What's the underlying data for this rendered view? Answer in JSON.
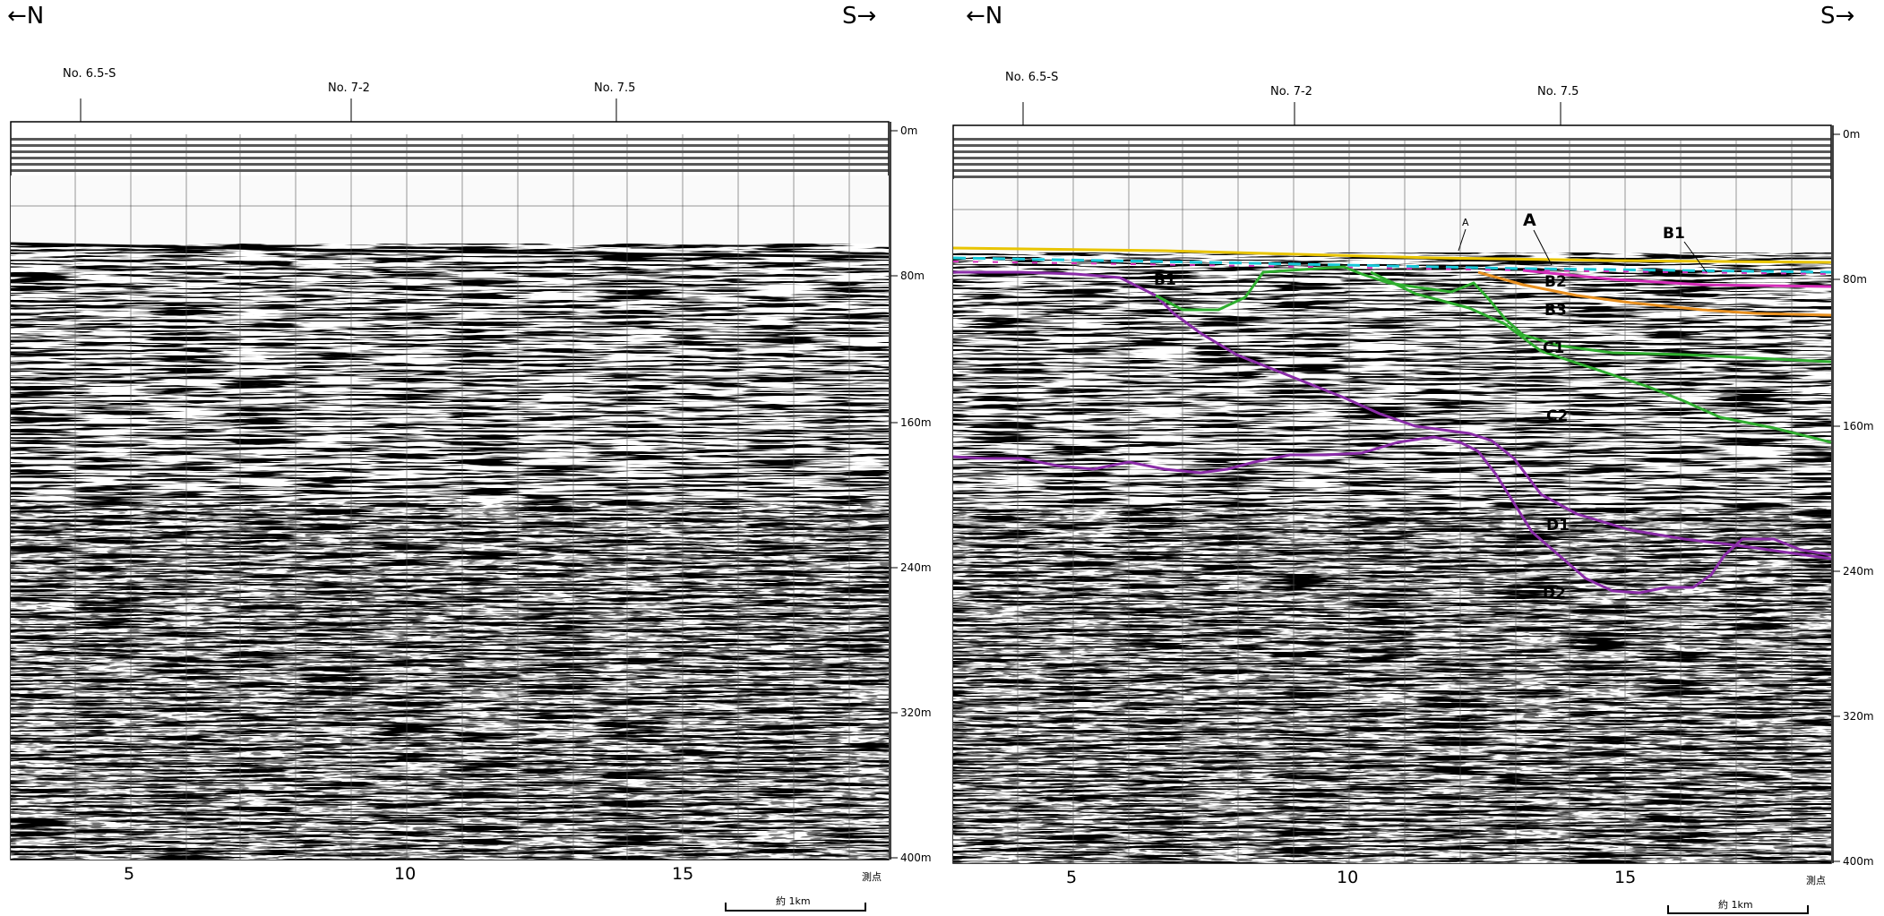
{
  "panels": [
    {
      "id": "left",
      "dir_left": "←N",
      "dir_right": "S→",
      "stations": [
        "No. 6.5-S",
        "No. 7-2",
        "No. 7.5"
      ],
      "depth_ticks": [
        "0m",
        "80m",
        "160m",
        "240m",
        "320m",
        "400m"
      ],
      "shot_ticks": [
        "5",
        "10",
        "15"
      ],
      "shot_unit": "測点",
      "scale_label": "約 1km",
      "annotated": false
    },
    {
      "id": "right",
      "dir_left": "←N",
      "dir_right": "S→",
      "stations": [
        "No. 6.5-S",
        "No. 7-2",
        "No. 7.5"
      ],
      "depth_ticks": [
        "0m",
        "80m",
        "160m",
        "240m",
        "320m",
        "400m"
      ],
      "shot_ticks": [
        "5",
        "10",
        "15"
      ],
      "shot_unit": "測点",
      "scale_label": "約 1km",
      "annotated": true
    }
  ],
  "horizons": {
    "labels": [
      "A",
      "B1",
      "B2",
      "B3",
      "C1",
      "C2",
      "D1",
      "D2"
    ],
    "small_label": "A",
    "colors": {
      "A": "#e8c400",
      "B1": "#d42cb8",
      "B1_dash": "#18c8d8",
      "B2": "#e89020",
      "C": "#2fae2f",
      "D": "#8a2ca8"
    }
  }
}
